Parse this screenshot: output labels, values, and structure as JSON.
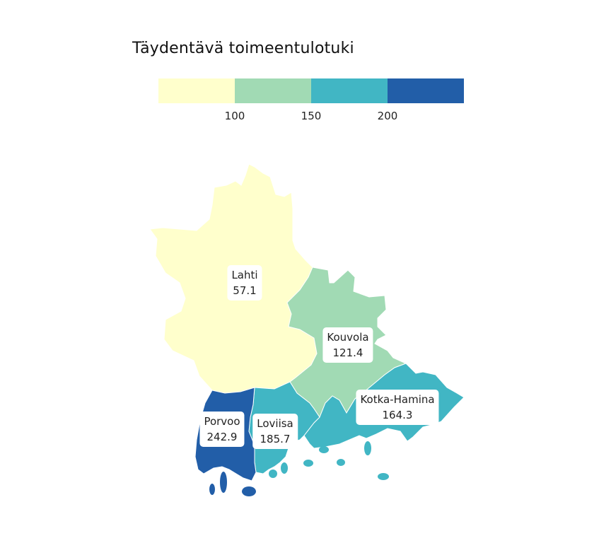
{
  "title": "Täydentävä toimeentulotuki",
  "legend": {
    "bins": [
      {
        "color": "#ffffcc"
      },
      {
        "color": "#a1dab4"
      },
      {
        "color": "#41b6c4"
      },
      {
        "color": "#225ea8"
      }
    ],
    "ticks": [
      "100",
      "150",
      "200"
    ]
  },
  "regions": [
    {
      "name": "Lahti",
      "value": "57.1",
      "color": "#ffffcc"
    },
    {
      "name": "Kouvola",
      "value": "121.4",
      "color": "#a1dab4"
    },
    {
      "name": "Kotka-Hamina",
      "value": "164.3",
      "color": "#41b6c4"
    },
    {
      "name": "Loviisa",
      "value": "185.7",
      "color": "#41b6c4"
    },
    {
      "name": "Porvoo",
      "value": "242.9",
      "color": "#225ea8"
    }
  ]
}
